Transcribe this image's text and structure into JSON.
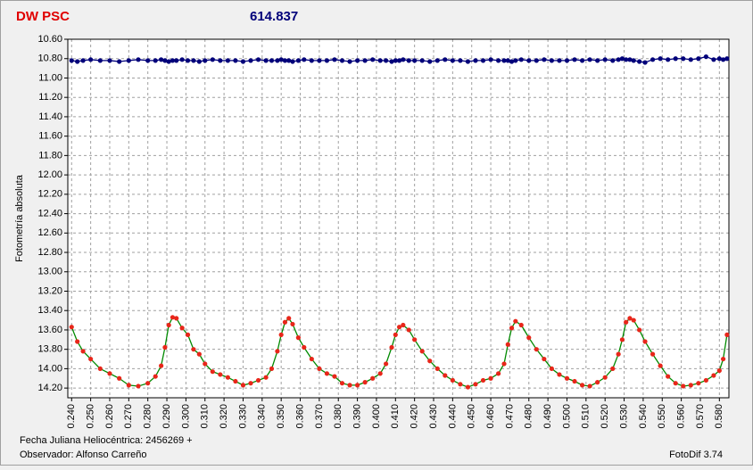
{
  "chart_data": {
    "type": "line",
    "title": "DW PSC",
    "subtitle": "614.837",
    "ylabel": "Fotometría absoluta",
    "xlabel": "Fecha Juliana Heliocéntrica: 2456269 +",
    "observer": "Observador: Alfonso Carreño",
    "software": "FotoDif 3.74",
    "grid": true,
    "xlim": [
      0.238,
      0.585
    ],
    "ylim": [
      14.3,
      10.6
    ],
    "xticks": [
      {
        "value": 0.24,
        "label": "0.240"
      },
      {
        "value": 0.25,
        "label": "0.250"
      },
      {
        "value": 0.26,
        "label": "0.260"
      },
      {
        "value": 0.27,
        "label": "0.270"
      },
      {
        "value": 0.28,
        "label": "0.280"
      },
      {
        "value": 0.29,
        "label": "0.290"
      },
      {
        "value": 0.3,
        "label": "0.300"
      },
      {
        "value": 0.31,
        "label": "0.310"
      },
      {
        "value": 0.32,
        "label": "0.320"
      },
      {
        "value": 0.33,
        "label": "0.330"
      },
      {
        "value": 0.34,
        "label": "0.340"
      },
      {
        "value": 0.35,
        "label": "0.350"
      },
      {
        "value": 0.36,
        "label": "0.360"
      },
      {
        "value": 0.37,
        "label": "0.370"
      },
      {
        "value": 0.38,
        "label": "0.380"
      },
      {
        "value": 0.39,
        "label": "0.390"
      },
      {
        "value": 0.4,
        "label": "0.400"
      },
      {
        "value": 0.41,
        "label": "0.410"
      },
      {
        "value": 0.42,
        "label": "0.420"
      },
      {
        "value": 0.43,
        "label": "0.430"
      },
      {
        "value": 0.44,
        "label": "0.440"
      },
      {
        "value": 0.45,
        "label": "0.450"
      },
      {
        "value": 0.46,
        "label": "0.460"
      },
      {
        "value": 0.47,
        "label": "0.470"
      },
      {
        "value": 0.48,
        "label": "0.480"
      },
      {
        "value": 0.49,
        "label": "0.490"
      },
      {
        "value": 0.5,
        "label": "0.500"
      },
      {
        "value": 0.51,
        "label": "0.510"
      },
      {
        "value": 0.52,
        "label": "0.520"
      },
      {
        "value": 0.53,
        "label": "0.530"
      },
      {
        "value": 0.54,
        "label": "0.540"
      },
      {
        "value": 0.55,
        "label": "0.550"
      },
      {
        "value": 0.56,
        "label": "0.560"
      },
      {
        "value": 0.57,
        "label": "0.570"
      },
      {
        "value": 0.58,
        "label": "0.580"
      }
    ],
    "yticks": [
      {
        "value": 10.6,
        "label": "10.60"
      },
      {
        "value": 10.8,
        "label": "10.80"
      },
      {
        "value": 11.0,
        "label": "11.00"
      },
      {
        "value": 11.2,
        "label": "11.20"
      },
      {
        "value": 11.4,
        "label": "11.40"
      },
      {
        "value": 11.6,
        "label": "11.60"
      },
      {
        "value": 11.8,
        "label": "11.80"
      },
      {
        "value": 12.0,
        "label": "12.00"
      },
      {
        "value": 12.2,
        "label": "12.20"
      },
      {
        "value": 12.4,
        "label": "12.40"
      },
      {
        "value": 12.6,
        "label": "12.60"
      },
      {
        "value": 12.8,
        "label": "12.80"
      },
      {
        "value": 13.0,
        "label": "13.00"
      },
      {
        "value": 13.2,
        "label": "13.20"
      },
      {
        "value": 13.4,
        "label": "13.40"
      },
      {
        "value": 13.6,
        "label": "13.60"
      },
      {
        "value": 13.8,
        "label": "13.80"
      },
      {
        "value": 14.0,
        "label": "14.00"
      },
      {
        "value": 14.2,
        "label": "14.20"
      }
    ],
    "x": [
      0.24,
      0.243,
      0.246,
      0.25,
      0.255,
      0.26,
      0.265,
      0.27,
      0.275,
      0.28,
      0.284,
      0.287,
      0.289,
      0.291,
      0.293,
      0.295,
      0.298,
      0.301,
      0.304,
      0.307,
      0.31,
      0.314,
      0.318,
      0.322,
      0.326,
      0.33,
      0.334,
      0.338,
      0.342,
      0.345,
      0.348,
      0.35,
      0.352,
      0.354,
      0.356,
      0.359,
      0.362,
      0.366,
      0.37,
      0.374,
      0.378,
      0.382,
      0.386,
      0.39,
      0.394,
      0.398,
      0.402,
      0.405,
      0.408,
      0.41,
      0.412,
      0.414,
      0.417,
      0.42,
      0.424,
      0.428,
      0.432,
      0.436,
      0.44,
      0.444,
      0.448,
      0.452,
      0.456,
      0.46,
      0.464,
      0.467,
      0.469,
      0.471,
      0.473,
      0.476,
      0.48,
      0.484,
      0.488,
      0.492,
      0.496,
      0.5,
      0.504,
      0.508,
      0.512,
      0.516,
      0.52,
      0.524,
      0.527,
      0.529,
      0.531,
      0.533,
      0.535,
      0.538,
      0.541,
      0.545,
      0.549,
      0.553,
      0.557,
      0.561,
      0.565,
      0.569,
      0.573,
      0.577,
      0.58,
      0.582,
      0.584
    ],
    "series": [
      {
        "color": "#00007a",
        "line_color": "#00007a",
        "values": [
          10.82,
          10.83,
          10.82,
          10.81,
          10.82,
          10.82,
          10.83,
          10.82,
          10.81,
          10.82,
          10.82,
          10.81,
          10.82,
          10.83,
          10.82,
          10.82,
          10.81,
          10.82,
          10.82,
          10.83,
          10.82,
          10.81,
          10.82,
          10.82,
          10.82,
          10.83,
          10.82,
          10.81,
          10.82,
          10.82,
          10.82,
          10.81,
          10.82,
          10.82,
          10.83,
          10.82,
          10.81,
          10.82,
          10.82,
          10.82,
          10.81,
          10.82,
          10.83,
          10.82,
          10.82,
          10.81,
          10.82,
          10.82,
          10.83,
          10.82,
          10.82,
          10.81,
          10.82,
          10.82,
          10.82,
          10.83,
          10.82,
          10.81,
          10.82,
          10.82,
          10.83,
          10.82,
          10.82,
          10.81,
          10.82,
          10.82,
          10.82,
          10.83,
          10.82,
          10.81,
          10.82,
          10.82,
          10.81,
          10.82,
          10.82,
          10.82,
          10.81,
          10.82,
          10.81,
          10.82,
          10.81,
          10.82,
          10.81,
          10.8,
          10.81,
          10.81,
          10.82,
          10.83,
          10.84,
          10.81,
          10.8,
          10.81,
          10.8,
          10.8,
          10.81,
          10.8,
          10.78,
          10.81,
          10.8,
          10.81,
          10.8
        ]
      },
      {
        "color": "#e8261a",
        "line_color": "#008a00",
        "values": [
          13.57,
          13.72,
          13.82,
          13.9,
          14.0,
          14.05,
          14.1,
          14.17,
          14.18,
          14.15,
          14.08,
          13.97,
          13.78,
          13.55,
          13.47,
          13.48,
          13.58,
          13.65,
          13.8,
          13.85,
          13.95,
          14.03,
          14.06,
          14.09,
          14.13,
          14.17,
          14.15,
          14.12,
          14.09,
          14.0,
          13.82,
          13.65,
          13.52,
          13.48,
          13.54,
          13.68,
          13.78,
          13.9,
          14.0,
          14.05,
          14.08,
          14.15,
          14.17,
          14.17,
          14.14,
          14.1,
          14.05,
          13.95,
          13.78,
          13.65,
          13.57,
          13.55,
          13.6,
          13.7,
          13.82,
          13.92,
          14.0,
          14.07,
          14.12,
          14.16,
          14.19,
          14.16,
          14.12,
          14.1,
          14.05,
          13.95,
          13.75,
          13.58,
          13.51,
          13.55,
          13.68,
          13.8,
          13.9,
          14.0,
          14.06,
          14.1,
          14.13,
          14.17,
          14.18,
          14.14,
          14.09,
          14.0,
          13.85,
          13.7,
          13.52,
          13.48,
          13.5,
          13.6,
          13.72,
          13.85,
          13.97,
          14.08,
          14.15,
          14.18,
          14.17,
          14.15,
          14.12,
          14.07,
          14.02,
          13.9,
          13.65
        ]
      }
    ]
  }
}
